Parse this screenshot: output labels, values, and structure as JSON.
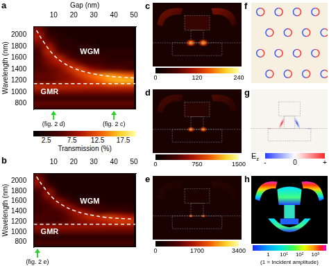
{
  "chart_data": [
    {
      "type": "heatmap",
      "panel": "a",
      "xlabel": "Gap (nm)",
      "ylabel": "Wavelength (nm)",
      "xlim": [
        0,
        51
      ],
      "xticks": [
        10,
        20,
        30,
        40,
        50
      ],
      "ylim": [
        700,
        2150
      ],
      "yticks": [
        800,
        1000,
        1200,
        1400,
        1600,
        1800,
        2000
      ],
      "grid": false,
      "x": [
        2.5,
        7.5,
        12.5,
        17.5,
        22.5,
        27.5,
        32.5,
        37.5,
        42.5,
        47.5
      ],
      "y": [
        2100,
        2000,
        1900,
        1800,
        1700,
        1600,
        1500,
        1400,
        1300,
        1200,
        1100,
        1000,
        900,
        800,
        700
      ],
      "cells": [
        [
          7,
          3,
          2,
          2,
          2,
          2,
          2,
          2,
          2,
          2
        ],
        [
          9,
          4,
          3,
          2,
          2,
          2,
          2,
          2,
          2,
          2
        ],
        [
          8,
          6,
          3,
          3,
          2,
          2,
          2,
          2,
          2,
          2
        ],
        [
          6,
          9,
          4,
          3,
          3,
          3,
          2,
          2,
          2,
          2
        ],
        [
          5,
          10,
          6,
          4,
          3,
          3,
          3,
          3,
          3,
          3
        ],
        [
          5,
          8,
          10,
          6,
          4,
          4,
          4,
          3,
          3,
          3
        ],
        [
          5,
          7,
          9,
          10,
          7,
          5,
          5,
          4,
          4,
          4
        ],
        [
          5,
          6,
          7,
          10,
          12,
          9,
          7,
          6,
          6,
          5
        ],
        [
          6,
          6,
          7,
          8,
          11,
          13,
          14,
          15,
          14,
          13
        ],
        [
          6,
          6,
          7,
          8,
          9,
          11,
          13,
          15,
          16,
          16
        ],
        [
          10,
          10,
          10,
          10,
          10,
          10,
          10,
          11,
          11,
          11
        ],
        [
          7,
          7,
          7,
          7,
          7,
          7,
          7,
          7,
          7,
          7
        ],
        [
          4,
          4,
          4,
          4,
          4,
          4,
          4,
          4,
          4,
          4
        ],
        [
          6,
          6,
          6,
          6,
          6,
          6,
          6,
          6,
          6,
          6
        ],
        [
          4,
          4,
          4,
          4,
          4,
          4,
          4,
          4,
          4,
          4
        ]
      ],
      "lines": [
        {
          "x": [
            1.5,
            5,
            10,
            15,
            20,
            25,
            30,
            35,
            40,
            45,
            50
          ],
          "y": [
            2080,
            1880,
            1650,
            1510,
            1420,
            1360,
            1320,
            1290,
            1270,
            1260,
            1250
          ],
          "color": "#ffffff",
          "line_style": "dashed"
        },
        {
          "x": [
            0,
            51
          ],
          "y": [
            1150,
            1150
          ],
          "color": "#ffffff",
          "line_style": "dashed"
        }
      ],
      "annotations": [
        {
          "text": "WGM",
          "x": 28,
          "y": 1700
        },
        {
          "text": "GMR",
          "x": 8,
          "y": 1000
        }
      ],
      "markers": [
        {
          "x": 10,
          "label": "(fig. 2 d)",
          "color": "#2bd12b"
        },
        {
          "x": 40,
          "label": "(fig. 2 c)",
          "color": "#2bd12b"
        }
      ],
      "colorbar": {
        "label": "Transmission (%)",
        "range": [
          0,
          20
        ],
        "ticks": [
          2.5,
          7.5,
          12.5,
          17.5
        ]
      }
    },
    {
      "type": "heatmap",
      "panel": "b",
      "ylabel": "Wavelength (nm)",
      "xlim": [
        0,
        51
      ],
      "xticks": [
        10,
        20,
        30,
        40,
        50
      ],
      "ylim": [
        700,
        2150
      ],
      "yticks": [
        800,
        1000,
        1200,
        1400,
        1600,
        1800,
        2000
      ],
      "grid": false,
      "x": [
        2.5,
        7.5,
        12.5,
        17.5,
        22.5,
        27.5,
        32.5,
        37.5,
        42.5,
        47.5
      ],
      "y": [
        2100,
        2000,
        1900,
        1800,
        1700,
        1600,
        1500,
        1400,
        1300,
        1200,
        1100,
        1000,
        900,
        800,
        700
      ],
      "cells": [
        [
          6,
          2,
          2,
          2,
          2,
          2,
          2,
          2,
          2,
          2
        ],
        [
          8,
          3,
          2,
          2,
          2,
          2,
          2,
          2,
          2,
          2
        ],
        [
          7,
          5,
          2,
          2,
          2,
          2,
          2,
          2,
          2,
          2
        ],
        [
          5,
          8,
          3,
          2,
          2,
          2,
          2,
          2,
          2,
          2
        ],
        [
          4,
          8,
          5,
          3,
          2,
          2,
          2,
          2,
          2,
          2
        ],
        [
          4,
          6,
          8,
          5,
          3,
          3,
          3,
          2,
          2,
          2
        ],
        [
          4,
          5,
          7,
          8,
          5,
          4,
          4,
          3,
          3,
          3
        ],
        [
          4,
          5,
          5,
          7,
          9,
          7,
          5,
          5,
          5,
          4
        ],
        [
          5,
          5,
          5,
          6,
          8,
          10,
          10,
          11,
          10,
          9
        ],
        [
          5,
          5,
          5,
          6,
          7,
          8,
          9,
          10,
          11,
          11
        ],
        [
          8,
          8,
          8,
          8,
          8,
          8,
          8,
          8,
          8,
          8
        ],
        [
          6,
          6,
          6,
          6,
          6,
          6,
          6,
          6,
          6,
          6
        ],
        [
          3,
          3,
          3,
          3,
          3,
          3,
          3,
          3,
          3,
          3
        ],
        [
          5,
          5,
          5,
          5,
          5,
          5,
          5,
          5,
          5,
          5
        ],
        [
          3,
          3,
          3,
          3,
          3,
          3,
          3,
          3,
          3,
          3
        ]
      ],
      "lines": [
        {
          "x": [
            1.5,
            5,
            10,
            15,
            20,
            25,
            30,
            35,
            40,
            45,
            50
          ],
          "y": [
            2080,
            1880,
            1650,
            1510,
            1420,
            1360,
            1320,
            1290,
            1270,
            1260,
            1250
          ],
          "color": "#ffffff",
          "line_style": "dashed"
        },
        {
          "x": [
            0,
            51
          ],
          "y": [
            1150,
            1150
          ],
          "color": "#ffffff",
          "line_style": "dashed"
        }
      ],
      "annotations": [
        {
          "text": "WGM",
          "x": 28,
          "y": 1600
        },
        {
          "text": "GMR",
          "x": 8,
          "y": 1000
        }
      ],
      "markers": [
        {
          "x": 2,
          "label": "(fig. 2 e)",
          "color": "#2bd12b"
        }
      ]
    }
  ],
  "field_panels": [
    {
      "panel": "c",
      "type": "intensity",
      "colorbar": {
        "range": [
          0,
          240
        ],
        "ticks": [
          0,
          120,
          240
        ]
      }
    },
    {
      "panel": "d",
      "type": "intensity",
      "colorbar": {
        "range": [
          0,
          1500
        ],
        "ticks": [
          0,
          750,
          1500
        ]
      }
    },
    {
      "panel": "e",
      "type": "intensity",
      "colorbar": {
        "range": [
          0,
          3400
        ],
        "ticks": [
          0,
          1700,
          3400
        ]
      }
    },
    {
      "panel": "f",
      "type": "ez_pattern"
    },
    {
      "panel": "g",
      "type": "ez",
      "colorbar": {
        "symbol": "E",
        "subscript": "z",
        "range": [
          -1,
          1
        ],
        "ticks": [
          {
            "value": -1,
            "label": "-"
          },
          0,
          {
            "value": 1,
            "label": "+"
          }
        ]
      }
    },
    {
      "panel": "h",
      "type": "amplitude",
      "colorbar": {
        "log": true,
        "label": "(1 = Incident amplitude)",
        "range": [
          0.1,
          5000
        ],
        "ticks": [
          1,
          {
            "value": 10,
            "label": "10¹"
          },
          {
            "value": 100,
            "label": "10²"
          },
          {
            "value": 1000,
            "label": "10³"
          }
        ]
      }
    }
  ]
}
